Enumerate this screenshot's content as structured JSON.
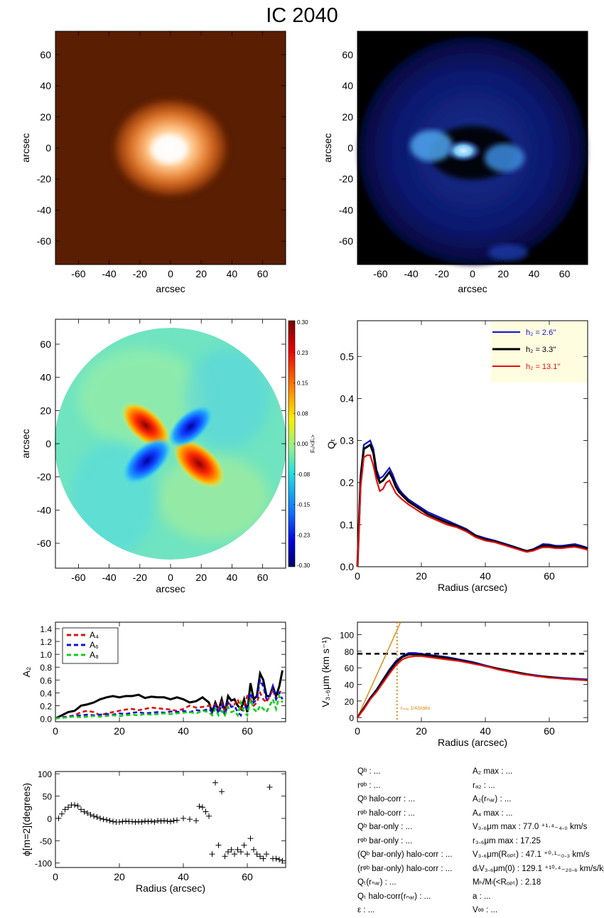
{
  "title": "IC 2040",
  "panels": {
    "image1": {
      "xlabel": "arcsec",
      "ylabel": "arcsec",
      "ticks": [
        "-60",
        "-40",
        "-20",
        "0",
        "20",
        "40",
        "60"
      ]
    },
    "image2": {
      "xlabel": "arcsec",
      "ylabel": "arcsec",
      "ticks": [
        "-60",
        "-40",
        "-20",
        "0",
        "20",
        "40",
        "60"
      ]
    },
    "ratio_map": {
      "xlabel": "arcsec",
      "ylabel": "arcsec",
      "ticks": [
        "-60",
        "-40",
        "-20",
        "0",
        "20",
        "40",
        "60"
      ],
      "colorbar_label": "Fₜ/<Fᵣ>",
      "colorbar_ticks": [
        "0.30",
        "0.23",
        "0.15",
        "0.08",
        "0.00",
        "-0.08",
        "-0.15",
        "-0.23",
        "-0.30"
      ]
    }
  },
  "chart_data": [
    {
      "type": "line",
      "id": "qt",
      "xlabel": "Radius (arcsec)",
      "ylabel": "Qₜ",
      "xlim": [
        0,
        72
      ],
      "ylim": [
        0,
        0.585
      ],
      "xticks": [
        0,
        20,
        40,
        60
      ],
      "yticks": [
        0.0,
        0.1,
        0.2,
        0.3,
        0.4,
        0.5
      ],
      "legend": "top-right",
      "x": [
        0,
        1,
        2,
        3,
        4,
        5,
        6,
        7,
        8,
        9,
        10,
        11,
        12,
        13,
        14,
        16,
        18,
        20,
        22,
        25,
        28,
        31,
        34,
        37,
        40,
        43,
        46,
        49,
        52,
        53,
        55,
        57,
        58,
        60,
        62,
        64,
        66,
        68,
        70,
        72
      ],
      "series": [
        {
          "name": "h₂ =   2.6''",
          "color": "#1010d0",
          "values": [
            0,
            0.22,
            0.29,
            0.295,
            0.3,
            0.28,
            0.23,
            0.21,
            0.215,
            0.225,
            0.235,
            0.22,
            0.2,
            0.185,
            0.175,
            0.16,
            0.15,
            0.14,
            0.13,
            0.12,
            0.11,
            0.1,
            0.09,
            0.075,
            0.068,
            0.062,
            0.055,
            0.048,
            0.04,
            0.038,
            0.042,
            0.05,
            0.054,
            0.053,
            0.05,
            0.05,
            0.052,
            0.054,
            0.05,
            0.045
          ]
        },
        {
          "name": "h₂ =   3.3''",
          "color": "#000000",
          "values": [
            0,
            0.21,
            0.28,
            0.285,
            0.29,
            0.27,
            0.22,
            0.2,
            0.205,
            0.215,
            0.225,
            0.21,
            0.19,
            0.178,
            0.17,
            0.155,
            0.145,
            0.135,
            0.125,
            0.115,
            0.105,
            0.097,
            0.087,
            0.073,
            0.065,
            0.06,
            0.053,
            0.046,
            0.039,
            0.037,
            0.04,
            0.047,
            0.05,
            0.05,
            0.047,
            0.047,
            0.049,
            0.05,
            0.047,
            0.043
          ]
        },
        {
          "name": "h₂ = 13.1''",
          "color": "#e01010",
          "values": [
            0,
            0.19,
            0.26,
            0.265,
            0.265,
            0.24,
            0.205,
            0.18,
            0.185,
            0.2,
            0.205,
            0.19,
            0.175,
            0.167,
            0.16,
            0.148,
            0.138,
            0.128,
            0.12,
            0.11,
            0.1,
            0.094,
            0.084,
            0.07,
            0.062,
            0.058,
            0.051,
            0.044,
            0.037,
            0.035,
            0.038,
            0.044,
            0.046,
            0.046,
            0.044,
            0.044,
            0.046,
            0.047,
            0.044,
            0.04
          ]
        }
      ]
    },
    {
      "type": "line",
      "id": "a2",
      "xlabel": "",
      "ylabel": "A₂",
      "xlim": [
        0,
        72
      ],
      "ylim": [
        -0.05,
        1.5
      ],
      "xticks": [
        0,
        20,
        40,
        60
      ],
      "yticks": [
        0.0,
        0.2,
        0.4,
        0.6,
        0.8,
        1.0,
        1.2,
        1.4
      ],
      "legend": "top-left",
      "x": [
        0,
        2,
        4,
        6,
        8,
        10,
        12,
        14,
        16,
        18,
        20,
        22,
        24,
        26,
        28,
        30,
        32,
        34,
        36,
        38,
        40,
        42,
        44,
        46,
        48,
        49,
        50,
        51,
        52,
        53,
        54,
        55,
        56,
        57,
        58,
        59,
        60,
        61,
        62,
        63,
        64,
        65,
        66,
        67,
        68,
        69,
        70,
        71
      ],
      "series": [
        {
          "name": "",
          "color": "#000000",
          "style": "solid",
          "values": [
            0,
            0.05,
            0.1,
            0.12,
            0.2,
            0.22,
            0.25,
            0.3,
            0.33,
            0.35,
            0.33,
            0.35,
            0.35,
            0.37,
            0.32,
            0.34,
            0.33,
            0.33,
            0.3,
            0.33,
            0.3,
            0.25,
            0.27,
            0.33,
            0.25,
            0.1,
            0.25,
            0.13,
            0.3,
            0.1,
            0.35,
            0.28,
            0.3,
            0.2,
            0.15,
            0.3,
            0.1,
            0.55,
            0.3,
            0.35,
            0.7,
            0.6,
            0.35,
            0.35,
            0.5,
            0.35,
            0.5,
            0.75
          ]
        },
        {
          "name": "A₄",
          "color": "#e01010",
          "style": "dashed",
          "values": [
            0,
            0.02,
            0.03,
            0.05,
            0.1,
            0.12,
            0.1,
            0.05,
            0.08,
            0.1,
            0.12,
            0.14,
            0.15,
            0.13,
            0.15,
            0.17,
            0.16,
            0.15,
            0.14,
            0.12,
            0.15,
            0.2,
            0.17,
            0.18,
            0.2,
            0.18,
            0.22,
            0.15,
            0.25,
            0.1,
            0.25,
            0.2,
            0.22,
            0.3,
            0.15,
            0.2,
            0.35,
            0.3,
            0.2,
            0.25,
            0.4,
            0.3,
            0.25,
            0.35,
            0.45,
            0.3,
            0.4,
            0.45
          ]
        },
        {
          "name": "A₆",
          "color": "#1010e0",
          "style": "dashed",
          "values": [
            0,
            0.02,
            0.03,
            0.04,
            0.05,
            0.06,
            0.05,
            0.06,
            0.07,
            0.06,
            0.08,
            0.07,
            0.09,
            0.1,
            0.08,
            0.09,
            0.1,
            0.09,
            0.11,
            0.1,
            0.12,
            0.1,
            0.13,
            0.12,
            0.15,
            0.1,
            0.2,
            0.08,
            0.22,
            0.05,
            0.25,
            0.18,
            0.2,
            0.1,
            0.05,
            0.2,
            0.15,
            0.4,
            0.25,
            0.3,
            0.6,
            0.5,
            0.3,
            0.35,
            0.5,
            0.3,
            0.4,
            0.3
          ]
        },
        {
          "name": "A₈",
          "color": "#10d010",
          "style": "dashed",
          "values": [
            0,
            0.01,
            0.02,
            0.03,
            0.02,
            0.03,
            0.04,
            0.03,
            0.04,
            0.05,
            0.04,
            0.05,
            0.06,
            0.05,
            0.07,
            0.06,
            0.07,
            0.08,
            0.07,
            0.08,
            0.09,
            0.1,
            0.08,
            0.12,
            0.1,
            0.05,
            0.15,
            0.05,
            0.12,
            0.05,
            0.18,
            0.1,
            0.12,
            0.05,
            0.25,
            0.1,
            0.05,
            0.3,
            0.15,
            0.1,
            0.2,
            0.15,
            0.1,
            0.2,
            0.3,
            0.15,
            0.35,
            0.25
          ]
        }
      ]
    },
    {
      "type": "line",
      "id": "vrot",
      "xlabel": "Radius (arcsec)",
      "ylabel": "V₃.₆μm (km s⁻¹)",
      "xlim": [
        0,
        72
      ],
      "ylim": [
        -5,
        115
      ],
      "xticks": [
        0,
        20,
        40,
        60
      ],
      "yticks": [
        0,
        20,
        40,
        60,
        80,
        100
      ],
      "hline": {
        "y": 77.0,
        "style": "dashed",
        "color": "#000000"
      },
      "vline": {
        "x": 12.4,
        "style": "dotted",
        "color": "#d98a10",
        "label": "rₘₐₓ 1/4Δratio"
      },
      "slope_line": {
        "x": [
          0,
          13.5
        ],
        "y": [
          0,
          115
        ],
        "color": "#d98a10"
      },
      "x": [
        0,
        1,
        2,
        3,
        4,
        6,
        8,
        10,
        12,
        14,
        16,
        18,
        20,
        24,
        28,
        32,
        36,
        40,
        44,
        48,
        52,
        56,
        60,
        64,
        68,
        72
      ],
      "series": [
        {
          "name": "",
          "color": "#1010d0",
          "values": [
            0,
            6,
            12,
            18,
            24,
            34,
            46,
            58,
            68,
            74,
            78,
            78,
            77,
            75,
            73,
            70,
            67,
            63,
            59,
            56,
            53,
            51,
            49,
            48,
            47,
            46
          ]
        },
        {
          "name": "",
          "color": "#000000",
          "values": [
            0,
            6,
            11,
            17,
            23,
            33,
            45,
            56,
            66,
            73,
            76,
            76,
            76,
            74,
            72,
            69,
            66,
            62,
            59,
            56,
            53,
            50,
            49,
            47,
            46,
            45
          ]
        },
        {
          "name": "",
          "color": "#e01010",
          "values": [
            0,
            5,
            10,
            16,
            22,
            31,
            42,
            53,
            63,
            70,
            73,
            74,
            74,
            72,
            70,
            68,
            65,
            62,
            58,
            55,
            52,
            50,
            48,
            47,
            46,
            45
          ]
        }
      ]
    },
    {
      "type": "scatter",
      "id": "phase",
      "xlabel": "Radius (arcsec)",
      "ylabel": "ϕ[m=2](degrees)",
      "xlim": [
        0,
        72
      ],
      "ylim": [
        -110,
        105
      ],
      "xticks": [
        0,
        20,
        40,
        60
      ],
      "yticks": [
        -100,
        -50,
        0,
        50,
        100
      ],
      "marker": "+",
      "x": [
        1,
        2,
        3,
        4,
        5,
        6,
        7,
        8,
        9,
        10,
        11,
        12,
        13,
        14,
        15,
        16,
        17,
        18,
        19,
        20,
        21,
        22,
        23,
        24,
        25,
        26,
        27,
        28,
        29,
        30,
        31,
        32,
        33,
        34,
        35,
        36,
        37,
        38,
        40,
        42,
        44,
        45,
        46,
        47,
        48,
        49,
        50,
        51,
        52,
        53,
        54,
        55,
        56,
        57,
        58,
        59,
        60,
        61,
        62,
        63,
        64,
        65,
        66,
        67,
        68,
        69,
        70,
        71
      ],
      "values": [
        0,
        10,
        20,
        25,
        30,
        30,
        28,
        20,
        15,
        12,
        8,
        5,
        3,
        0,
        -2,
        -3,
        -5,
        -7,
        -8,
        -8,
        -7,
        -6,
        -7,
        -7,
        -8,
        -7,
        -8,
        -6,
        -7,
        -6,
        -8,
        -5,
        -6,
        -5,
        -6,
        -7,
        -5,
        -4,
        0,
        -2,
        -5,
        27,
        25,
        15,
        5,
        -80,
        80,
        -60,
        60,
        -85,
        -75,
        -70,
        -80,
        -70,
        -75,
        -60,
        -80,
        -45,
        -70,
        -80,
        -85,
        -90,
        -80,
        70,
        -90,
        -90,
        -92,
        -95
      ]
    }
  ],
  "parameter_table": {
    "left": [
      {
        "label": "Qᵇ",
        "value": ": ..."
      },
      {
        "label": "rᵠᵇ",
        "value": ": ..."
      },
      {
        "label": "Qᵇ halo-corr",
        "value": ": ..."
      },
      {
        "label": "rᵠᵇ halo-corr",
        "value": ": ..."
      },
      {
        "label": "Qᵇ bar-only",
        "value": ": ..."
      },
      {
        "label": "rᵠᵇ bar-only",
        "value": ": ..."
      },
      {
        "label": "(Qᵇ bar-only) halo-corr",
        "value": ": ..."
      },
      {
        "label": "(rᵠᵇ bar-only) halo-corr",
        "value": ": ..."
      },
      {
        "label": "Qₜ(rₙₐᵣ)",
        "value": ": ..."
      },
      {
        "label": "Qₜ halo-corr(rₙₐᵣ)",
        "value": ": ..."
      },
      {
        "label": "ε",
        "value": ": ..."
      }
    ],
    "right": [
      {
        "label": "A₂ max",
        "value": ": ..."
      },
      {
        "label": "rₐ₂",
        "value": ": ..."
      },
      {
        "label": "A₂(rₙₐᵣ)",
        "value": ": ..."
      },
      {
        "label": "A₄ max",
        "value": ": ..."
      },
      {
        "label": "V₃.₆μm max",
        "value": ":  77.0 ⁺¹·⁴₋₄.₀ km/s"
      },
      {
        "label": "r₃.₆μm max",
        "value": ":  17.25"
      },
      {
        "label": "V₃.₆μm(Rₒₚₜ)",
        "value": ":  47.1 ⁺⁰·¹₋₀.₃ km/s"
      },
      {
        "label": "dᵣV₃.₆μm(0)",
        "value": ":  129.1 ⁺¹⁰·⁴₋₂₀.₆ km/s/kpc"
      },
      {
        "label": "Mₕ/Mₗ(<Rₒₚₜ)",
        "value": ":  2.18"
      },
      {
        "label": "a",
        "value": ": ..."
      },
      {
        "label": "V∞",
        "value": ": ..."
      }
    ]
  },
  "colors": {
    "orange_map": "#5a1e02",
    "blue_map": "#000000",
    "sample_frame": "#000000"
  }
}
